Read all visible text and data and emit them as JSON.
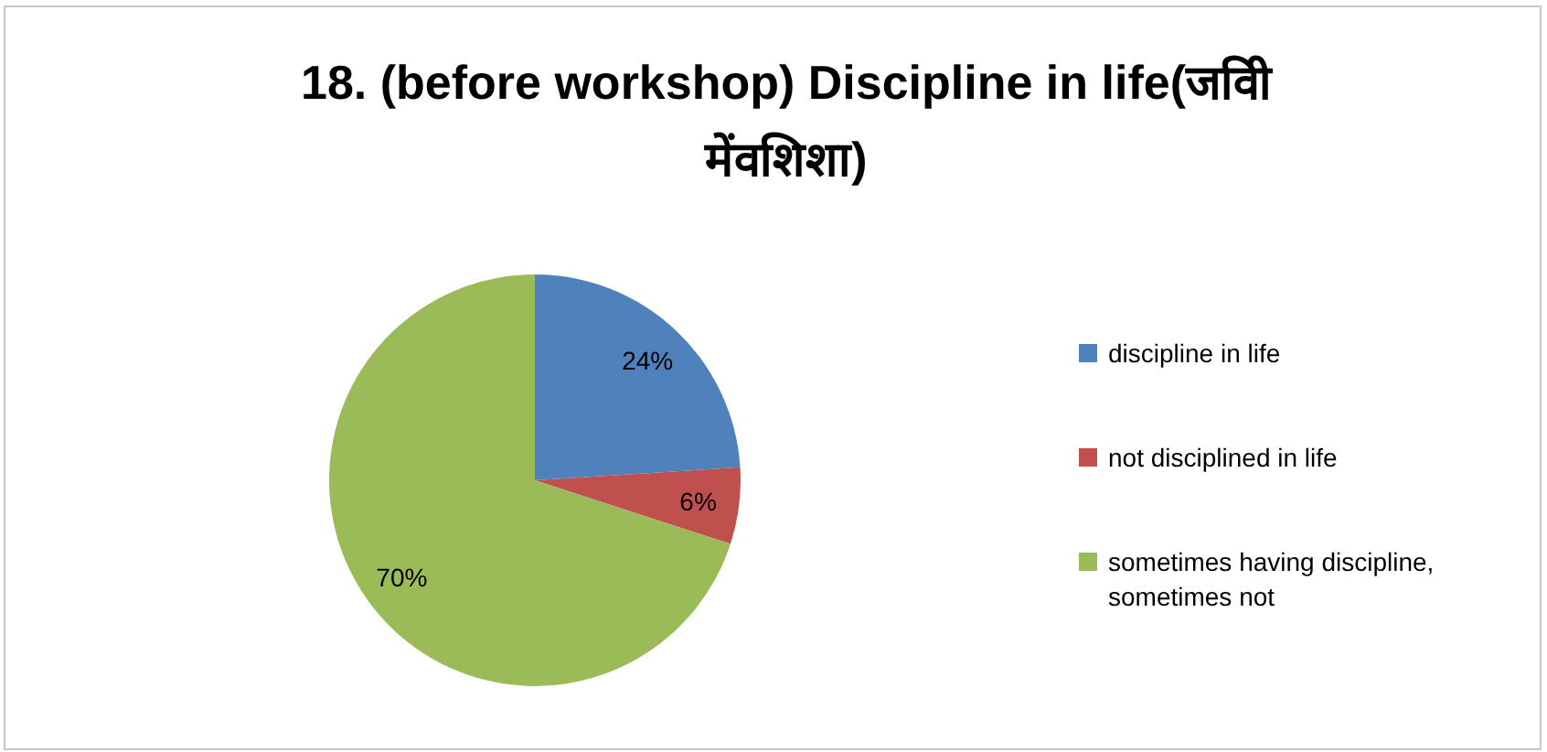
{
  "chart_data": {
    "type": "pie",
    "title": "18. (before workshop) Discipline in life(जवीि मेंवशिशा)",
    "categories": [
      "discipline in life",
      "not disciplined in life",
      "sometimes having discipline, sometimes not"
    ],
    "values": [
      24,
      6,
      70
    ],
    "colors": [
      "#4f81bd",
      "#c0504d",
      "#9bbb59"
    ],
    "value_labels": [
      "24%",
      "6%",
      "70%"
    ],
    "legend": "right"
  }
}
